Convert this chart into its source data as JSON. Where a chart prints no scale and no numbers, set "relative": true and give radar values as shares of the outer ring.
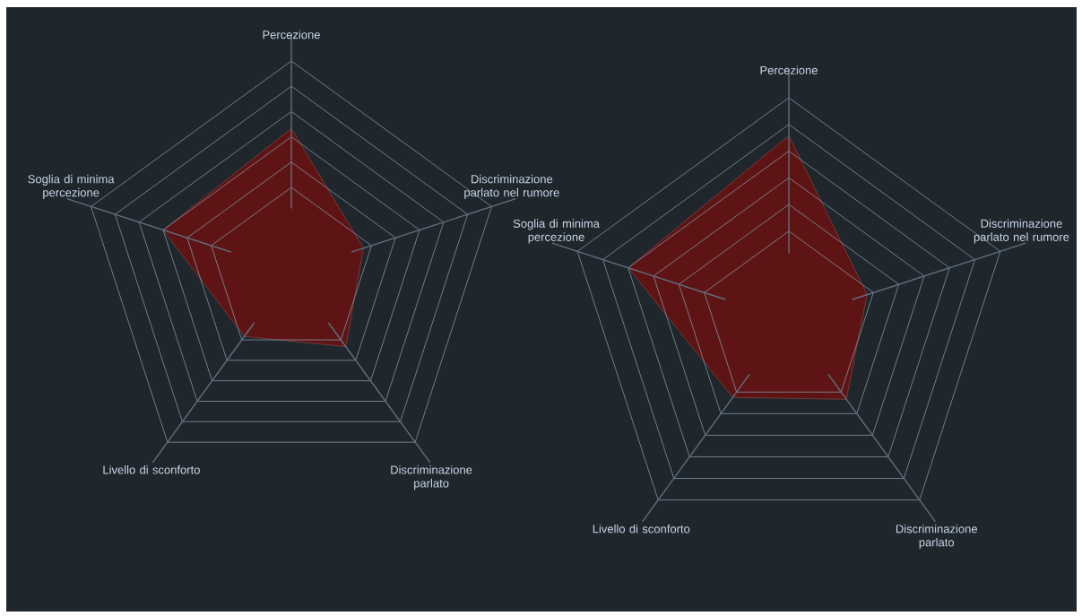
{
  "chart_data": [
    {
      "type": "radar",
      "categories": [
        "Percezione",
        "Discriminazione parlato nel rumore",
        "Discriminazione parlato",
        "Livello di sconforto",
        "Soglia di minima percezione"
      ],
      "relative": true,
      "grid": true,
      "series": [
        {
          "color": "#5e1414",
          "values": [
            0.68,
            0.36,
            0.44,
            0.38,
            0.64
          ]
        }
      ]
    },
    {
      "type": "radar",
      "categories": [
        "Percezione",
        "Discriminazione parlato nel rumore",
        "Discriminazione parlato",
        "Livello di sconforto",
        "Soglia di minima percezione"
      ],
      "relative": true,
      "grid": true,
      "series": [
        {
          "color": "#5e1414",
          "values": [
            0.83,
            0.37,
            0.44,
            0.43,
            0.76
          ]
        }
      ]
    }
  ]
}
